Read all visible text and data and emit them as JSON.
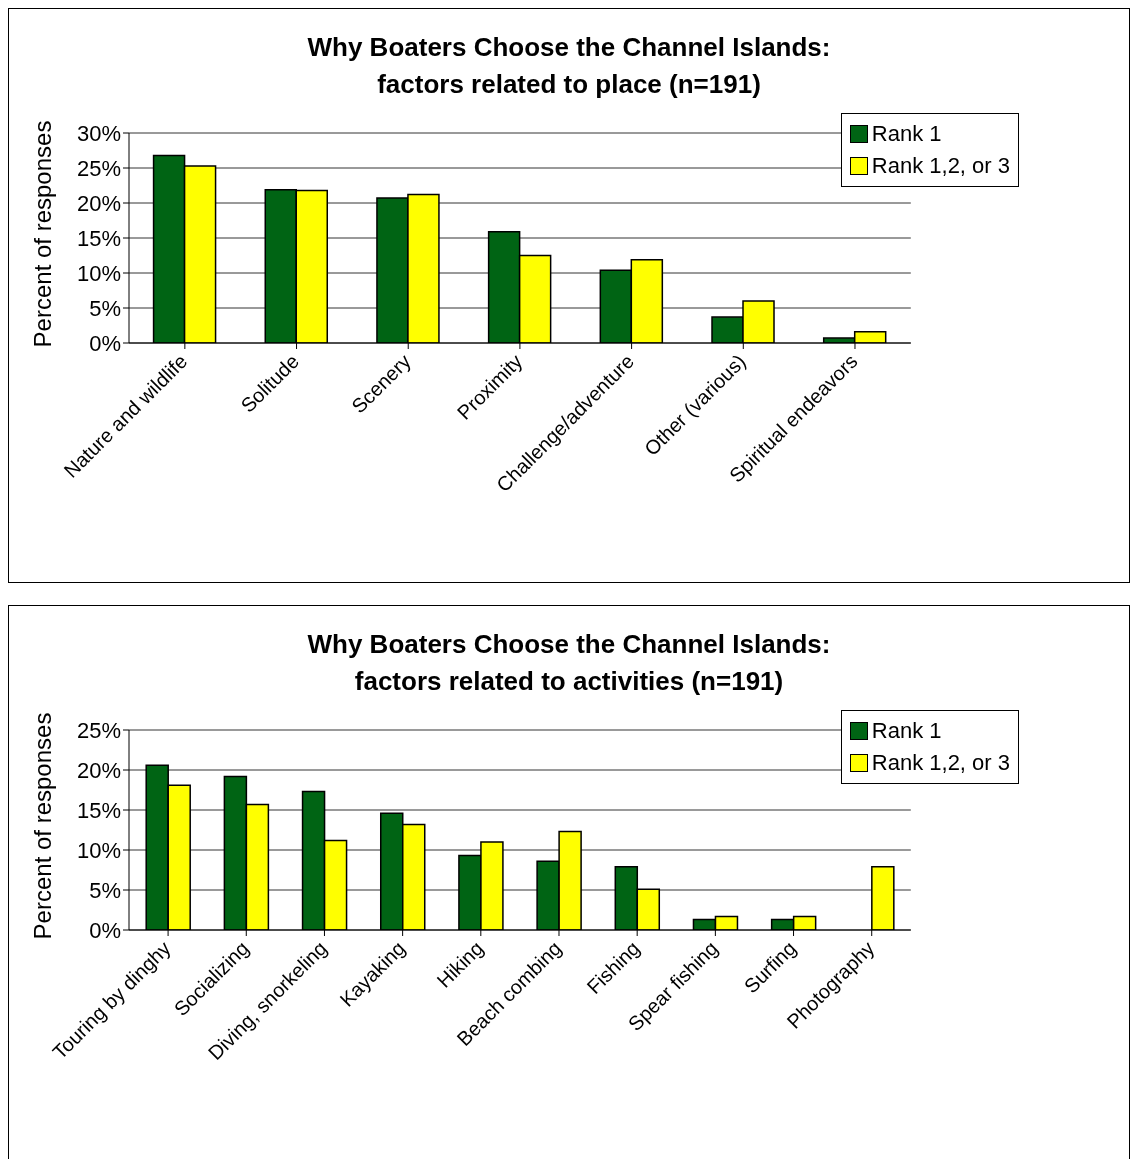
{
  "chart_data": [
    {
      "type": "bar",
      "title": "Why Boaters Choose the Channel Islands:\nfactors related to place (n=191)",
      "ylabel": "Percent of responses",
      "categories": [
        "Nature and wildlife",
        "Solitude",
        "Scenery",
        "Proximity",
        "Challenge/adventure",
        "Other (various)",
        "Spiritual endeavors"
      ],
      "series": [
        {
          "name": "Rank 1",
          "color": "#006414",
          "values": [
            26.8,
            21.9,
            20.7,
            15.9,
            10.4,
            3.7,
            0.7
          ]
        },
        {
          "name": "Rank 1,2, or 3",
          "color": "#ffff00",
          "values": [
            25.3,
            21.8,
            21.2,
            12.5,
            11.9,
            6.0,
            1.6
          ]
        }
      ],
      "ylim": [
        0,
        30
      ],
      "yticks": [
        {
          "value": 0,
          "label": "0%"
        },
        {
          "value": 5,
          "label": "5%"
        },
        {
          "value": 10,
          "label": "10%"
        },
        {
          "value": 15,
          "label": "15%"
        },
        {
          "value": 20,
          "label": "20%"
        },
        {
          "value": 25,
          "label": "25%"
        },
        {
          "value": 30,
          "label": "30%"
        }
      ],
      "grid": "y",
      "legend": "top right"
    },
    {
      "type": "bar",
      "title": "Why Boaters Choose the Channel Islands:\nfactors related to activities (n=191)",
      "ylabel": "Percent of responses",
      "categories": [
        "Touring by dinghy",
        "Socializing",
        "Diving, snorkeling",
        "Kayaking",
        "Hiking",
        "Beach combing",
        "Fishing",
        "Spear fishing",
        "Surfing",
        "Photography"
      ],
      "series": [
        {
          "name": "Rank 1",
          "color": "#006414",
          "values": [
            20.6,
            19.2,
            17.3,
            14.6,
            9.3,
            8.6,
            7.9,
            1.3,
            1.3,
            0
          ]
        },
        {
          "name": "Rank 1,2, or 3",
          "color": "#ffff00",
          "values": [
            18.1,
            15.7,
            11.2,
            13.2,
            11.0,
            12.3,
            5.1,
            1.7,
            1.7,
            7.9
          ]
        }
      ],
      "ylim": [
        0,
        25
      ],
      "yticks": [
        {
          "value": 0,
          "label": "0%"
        },
        {
          "value": 5,
          "label": "5%"
        },
        {
          "value": 10,
          "label": "10%"
        },
        {
          "value": 15,
          "label": "15%"
        },
        {
          "value": 20,
          "label": "20%"
        },
        {
          "value": 25,
          "label": "25%"
        }
      ],
      "grid": "y",
      "legend": "top right"
    }
  ]
}
